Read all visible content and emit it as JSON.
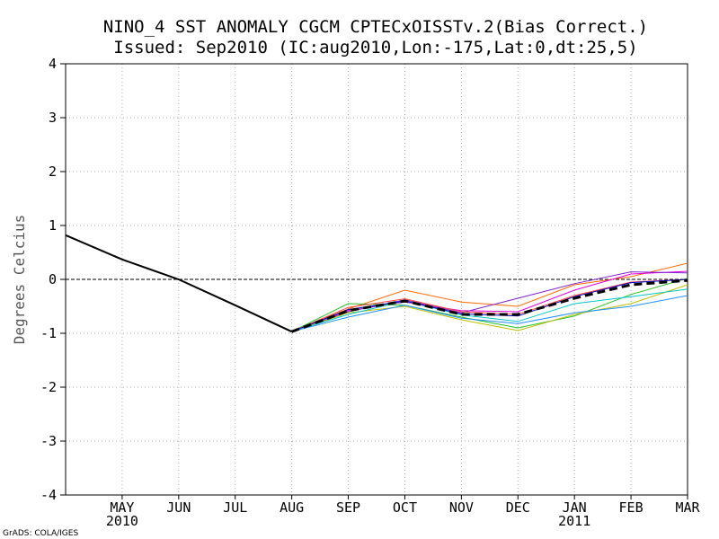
{
  "chart_data": {
    "type": "line",
    "title": "NINO_4 SST ANOMALY CGCM CPTECxOISSTv.2(Bias Correct.)",
    "subtitle": "Issued:  Sep2010 (IC:aug2010,Lon:-175,Lat:0,dt:25,5)",
    "ylabel": "Degrees Celcius",
    "ylim": [
      -4,
      4
    ],
    "yticks": [
      "4",
      "3",
      "2",
      "1",
      "0",
      "-1",
      "-2",
      "-3",
      "-4"
    ],
    "xlim": [
      0,
      11
    ],
    "categories": [
      "MAY",
      "JUN",
      "JUL",
      "AUG",
      "SEP",
      "OCT",
      "NOV",
      "DEC",
      "JAN",
      "FEB",
      "MAR"
    ],
    "category_x": [
      1,
      2,
      3,
      4,
      5,
      6,
      7,
      8,
      9,
      10,
      11
    ],
    "year_labels": [
      {
        "x": 1,
        "text": "2010"
      },
      {
        "x": 9,
        "text": "2011"
      }
    ],
    "grid": true,
    "zero_line": true,
    "observed": {
      "name": "observed",
      "color": "#000000",
      "x": [
        0,
        1,
        2,
        3,
        4
      ],
      "values": [
        0.82,
        0.37,
        0.0,
        -0.48,
        -0.97
      ]
    },
    "ensemble_x": [
      4,
      5,
      6,
      7,
      8,
      9,
      10,
      11
    ],
    "members": [
      {
        "color": "#ff6a00",
        "values": [
          -0.97,
          -0.55,
          -0.2,
          -0.42,
          -0.5,
          -0.1,
          0.05,
          0.3
        ]
      },
      {
        "color": "#e000e0",
        "values": [
          -0.97,
          -0.58,
          -0.42,
          -0.58,
          -0.6,
          -0.2,
          0.1,
          0.15
        ]
      },
      {
        "color": "#8020d0",
        "values": [
          -0.97,
          -0.6,
          -0.38,
          -0.62,
          -0.35,
          -0.08,
          0.14,
          0.12
        ]
      },
      {
        "color": "#20c020",
        "values": [
          -0.97,
          -0.45,
          -0.48,
          -0.7,
          -0.9,
          -0.68,
          -0.28,
          0.02
        ]
      },
      {
        "color": "#c0c000",
        "values": [
          -0.97,
          -0.62,
          -0.5,
          -0.75,
          -0.95,
          -0.65,
          -0.45,
          -0.1
        ]
      },
      {
        "color": "#1e90ff",
        "values": [
          -0.97,
          -0.7,
          -0.48,
          -0.72,
          -0.82,
          -0.62,
          -0.5,
          -0.3
        ]
      },
      {
        "color": "#00c8c8",
        "values": [
          -0.97,
          -0.65,
          -0.4,
          -0.66,
          -0.78,
          -0.45,
          -0.32,
          -0.18
        ]
      },
      {
        "color": "#ff4040",
        "values": [
          -0.97,
          -0.52,
          -0.36,
          -0.6,
          -0.65,
          -0.3,
          -0.05,
          0.0
        ]
      },
      {
        "color": "#0000cc",
        "values": [
          -0.97,
          -0.56,
          -0.4,
          -0.64,
          -0.68,
          -0.32,
          -0.06,
          0.0
        ]
      }
    ],
    "ensemble_mean": {
      "name": "ensemble mean",
      "color": "#000000",
      "style": "dashed",
      "values": [
        -0.97,
        -0.58,
        -0.4,
        -0.65,
        -0.65,
        -0.35,
        -0.1,
        -0.02
      ]
    }
  },
  "footer": {
    "credit": "GrADS: COLA/IGES"
  }
}
